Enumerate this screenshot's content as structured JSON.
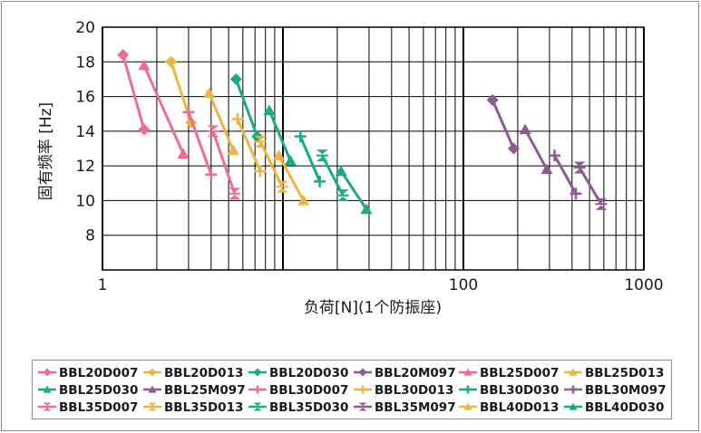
{
  "colors": {
    "pink": "#ee6c94",
    "yellow": "#eeb440",
    "green": "#19aa86",
    "purple": "#8f5a92",
    "grid": "#000000"
  },
  "chart_data": {
    "type": "line",
    "x_scale": "log",
    "xlim": [
      1,
      1000
    ],
    "ylim": [
      6,
      20
    ],
    "xlabel": "负荷[N](1个防振座)",
    "ylabel": "固有频率 [Hz]",
    "x_ticks": [
      "1",
      "100",
      "1000"
    ],
    "x_tick_values": [
      1,
      100,
      1000
    ],
    "y_ticks": [
      "8",
      "10",
      "12",
      "14",
      "16",
      "18",
      "20"
    ],
    "y_tick_values": [
      8,
      10,
      12,
      14,
      16,
      18,
      20
    ],
    "grid": true,
    "legend_position": "bottom",
    "series": [
      {
        "name": "BBL20D007",
        "color": "pink",
        "marker": "diamond",
        "points": [
          [
            1.3,
            18.4
          ],
          [
            1.7,
            14.1
          ]
        ]
      },
      {
        "name": "BBL20D013",
        "color": "yellow",
        "marker": "diamond",
        "points": [
          [
            2.4,
            18.0
          ],
          [
            3.1,
            14.5
          ]
        ]
      },
      {
        "name": "BBL20D030",
        "color": "green",
        "marker": "diamond",
        "points": [
          [
            5.5,
            17.0
          ],
          [
            7.2,
            13.7
          ]
        ]
      },
      {
        "name": "BBL20M097",
        "color": "purple",
        "marker": "diamond",
        "points": [
          [
            145,
            15.8
          ],
          [
            190,
            13.0
          ]
        ]
      },
      {
        "name": "BBL25D007",
        "color": "pink",
        "marker": "triangle",
        "points": [
          [
            1.7,
            17.8
          ],
          [
            2.8,
            12.7
          ]
        ]
      },
      {
        "name": "BBL25D013",
        "color": "yellow",
        "marker": "triangle",
        "points": [
          [
            3.9,
            16.2
          ],
          [
            5.3,
            12.9
          ]
        ]
      },
      {
        "name": "BBL25D030",
        "color": "green",
        "marker": "triangle",
        "points": [
          [
            8.4,
            15.2
          ],
          [
            11.0,
            12.3
          ]
        ]
      },
      {
        "name": "BBL25M097",
        "color": "purple",
        "marker": "triangle",
        "points": [
          [
            220,
            14.1
          ],
          [
            290,
            11.8
          ]
        ]
      },
      {
        "name": "BBL30D007",
        "color": "pink",
        "marker": "plus",
        "points": [
          [
            3.0,
            15.1
          ],
          [
            4.0,
            11.5
          ]
        ]
      },
      {
        "name": "BBL30D013",
        "color": "yellow",
        "marker": "plus",
        "points": [
          [
            5.6,
            14.7
          ],
          [
            7.5,
            11.7
          ]
        ]
      },
      {
        "name": "BBL30D030",
        "color": "green",
        "marker": "plus",
        "points": [
          [
            12.5,
            13.7
          ],
          [
            16.0,
            11.1
          ]
        ]
      },
      {
        "name": "BBL30M097",
        "color": "purple",
        "marker": "plus",
        "points": [
          [
            320,
            12.6
          ],
          [
            420,
            10.4
          ]
        ]
      },
      {
        "name": "BBL35D007",
        "color": "pink",
        "marker": "hourglass",
        "points": [
          [
            4.1,
            14.0
          ],
          [
            5.4,
            10.4
          ]
        ]
      },
      {
        "name": "BBL35D013",
        "color": "yellow",
        "marker": "hourglass",
        "points": [
          [
            7.5,
            13.4
          ],
          [
            9.9,
            10.8
          ]
        ]
      },
      {
        "name": "BBL35D030",
        "color": "green",
        "marker": "hourglass",
        "points": [
          [
            16.5,
            12.6
          ],
          [
            21.5,
            10.3
          ]
        ]
      },
      {
        "name": "BBL35M097",
        "color": "purple",
        "marker": "hourglass",
        "points": [
          [
            440,
            11.9
          ],
          [
            580,
            9.8
          ]
        ]
      },
      {
        "name": "BBL40D013",
        "color": "yellow",
        "marker": "triangle",
        "points": [
          [
            9.5,
            12.6
          ],
          [
            13.0,
            10.0
          ]
        ]
      },
      {
        "name": "BBL40D030",
        "color": "green",
        "marker": "triangle",
        "points": [
          [
            21.0,
            11.7
          ],
          [
            29.0,
            9.5
          ]
        ]
      }
    ]
  }
}
